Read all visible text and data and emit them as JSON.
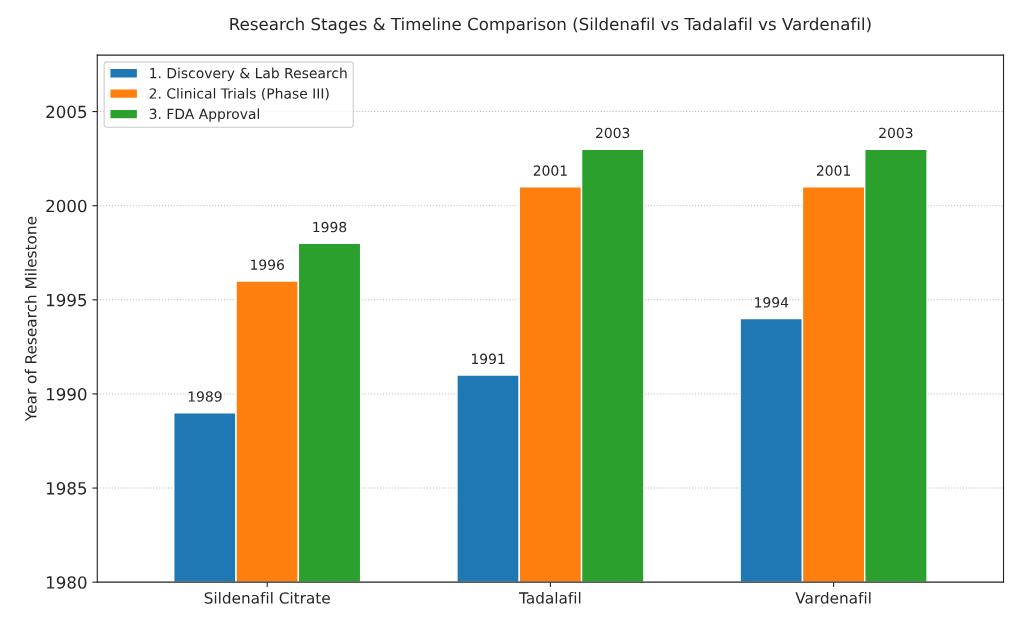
{
  "chart_data": {
    "type": "bar",
    "title": "Research Stages & Timeline Comparison (Sildenafil vs Tadalafil vs Vardenafil)",
    "ylabel": "Year of Research Milestone",
    "categories": [
      "Sildenafil Citrate",
      "Tadalafil",
      "Vardenafil"
    ],
    "series": [
      {
        "name": "1. Discovery & Lab Research",
        "color": "#1f77b4",
        "values": [
          1989,
          1991,
          1994
        ]
      },
      {
        "name": "2. Clinical Trials (Phase III)",
        "color": "#ff7f0e",
        "values": [
          1996,
          2001,
          2001
        ]
      },
      {
        "name": "3. FDA Approval",
        "color": "#2ca02c",
        "values": [
          1998,
          2003,
          2003
        ]
      }
    ],
    "ylim": [
      1980,
      2008
    ],
    "yticks": [
      1980,
      1985,
      1990,
      1995,
      2000,
      2005
    ],
    "grid": "y",
    "legend": "top left",
    "data_labels": true
  }
}
